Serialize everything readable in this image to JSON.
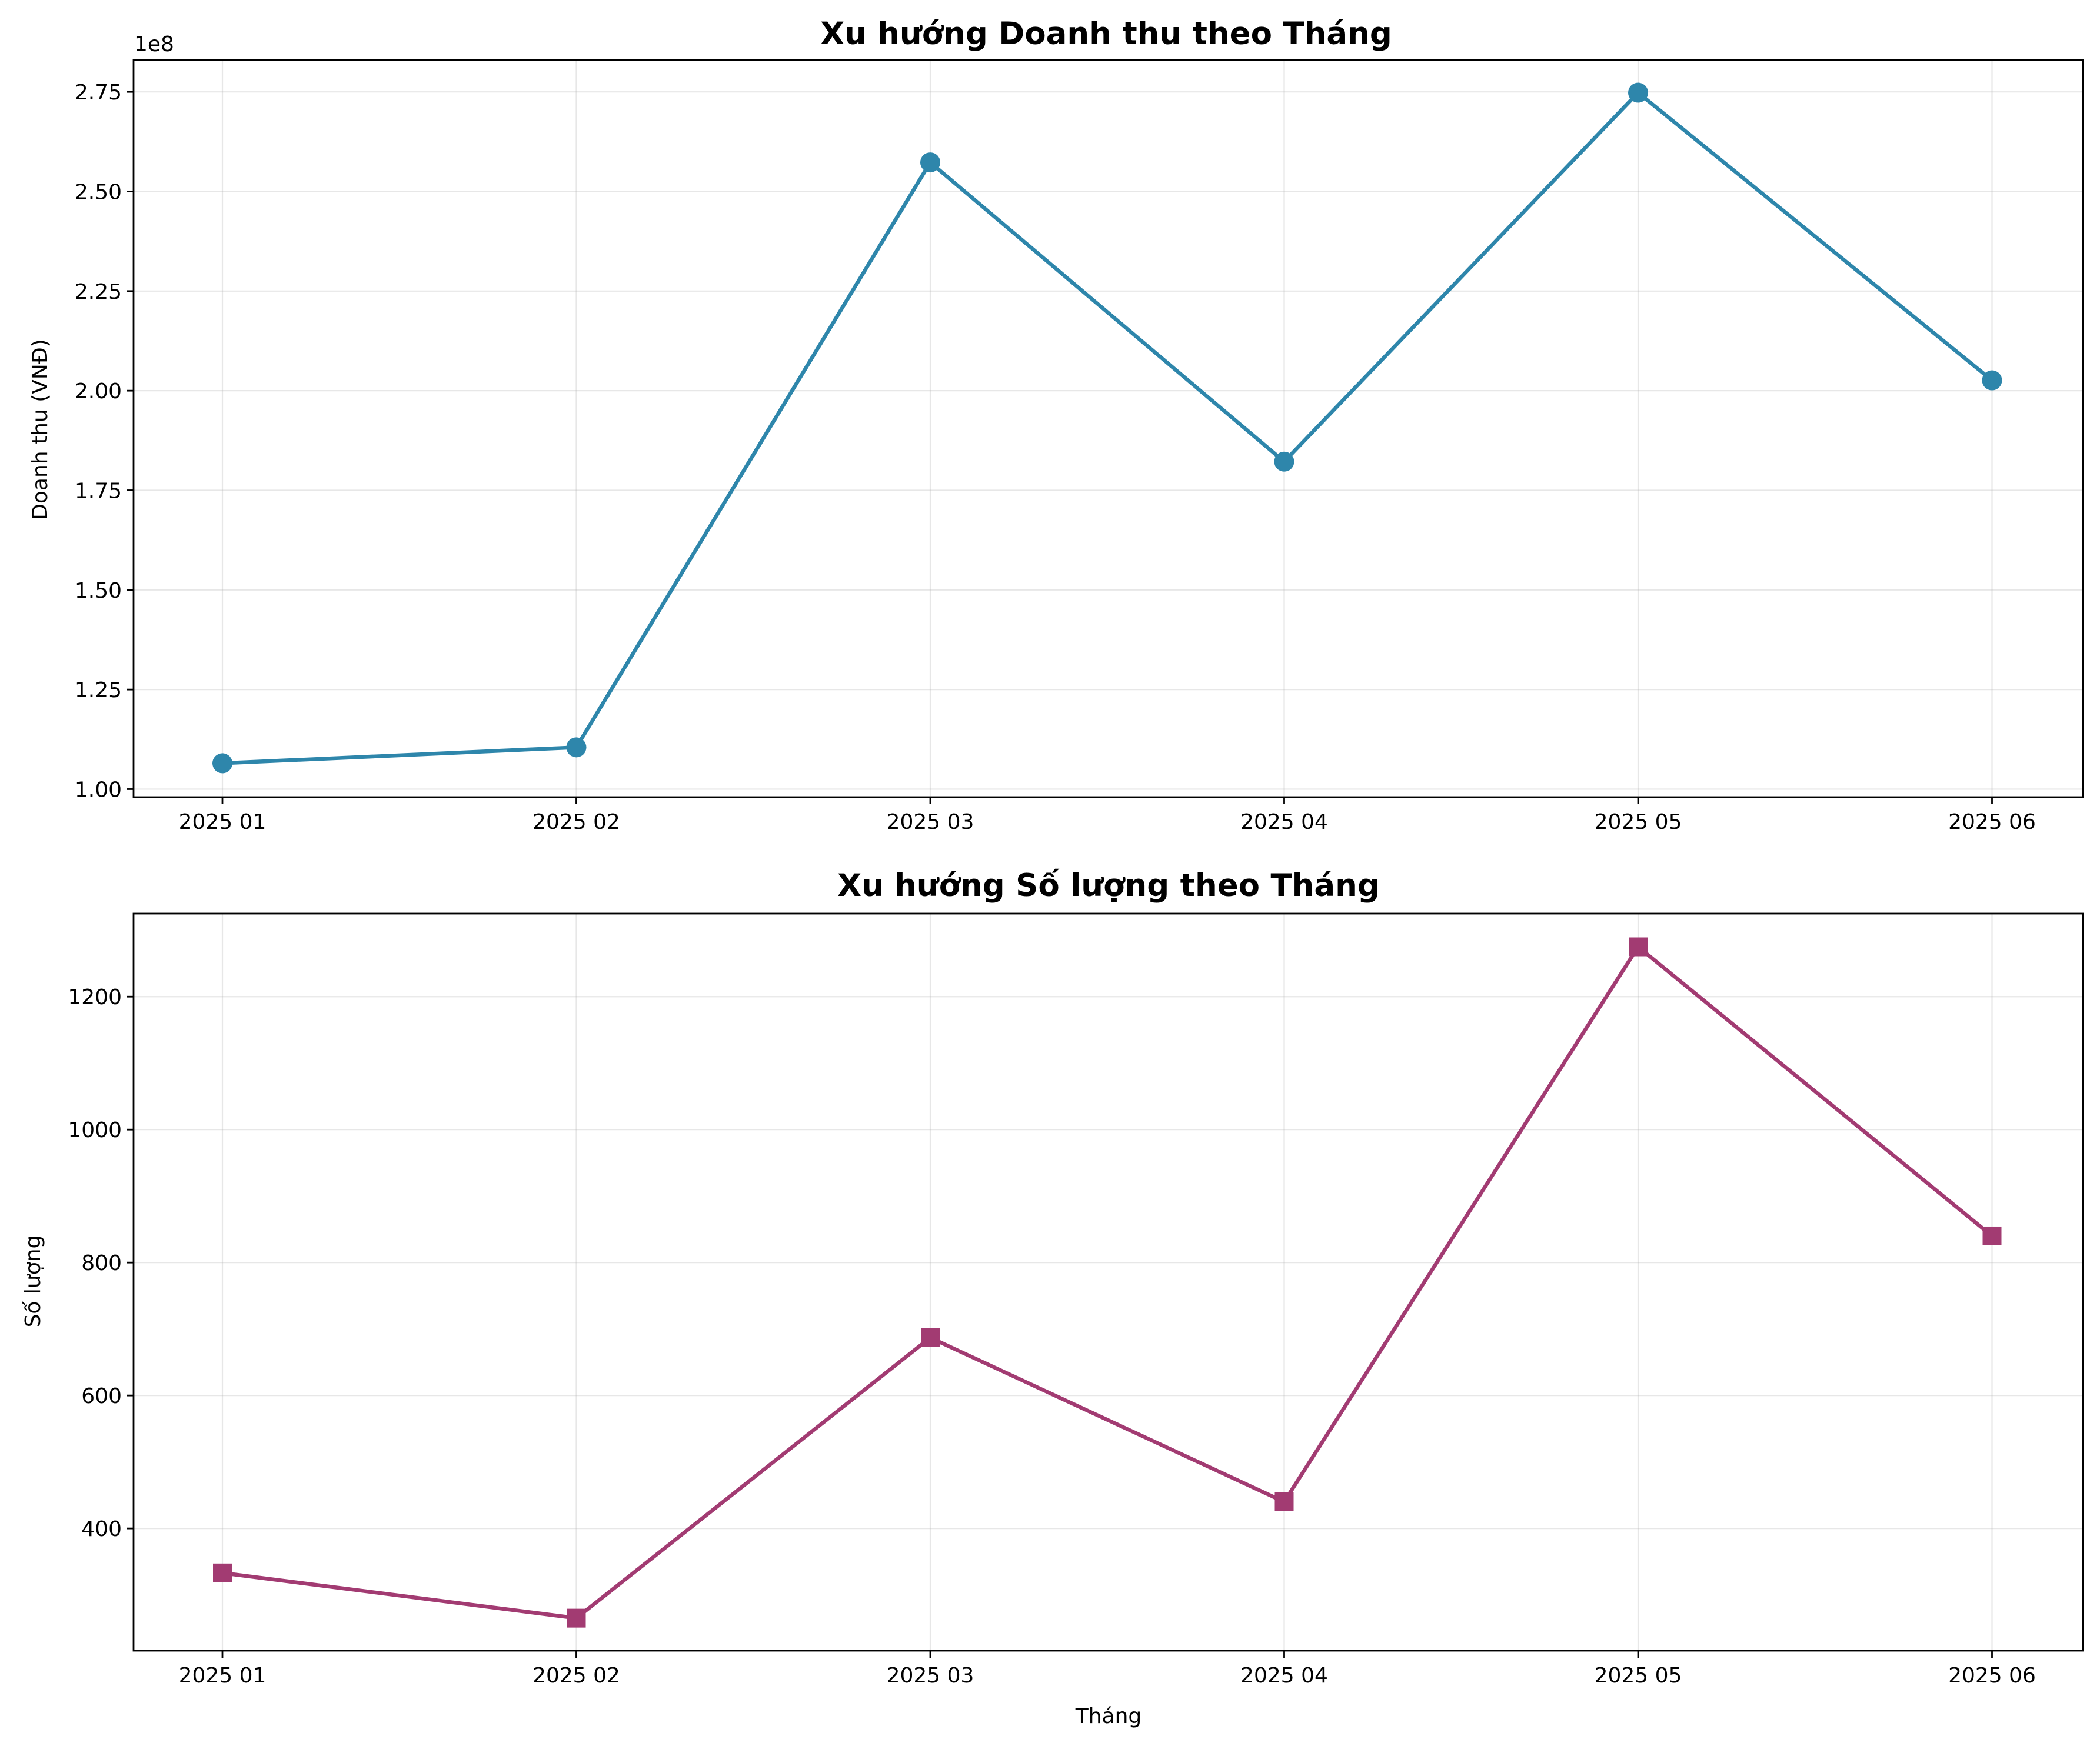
{
  "chart_data": [
    {
      "type": "line",
      "title": "Xu hướng Doanh thu theo Tháng",
      "xlabel": "",
      "ylabel": "Doanh thu (VNĐ)",
      "offset_label": "1e8",
      "categories": [
        "2025 01",
        "2025 02",
        "2025 03",
        "2025 04",
        "2025 05",
        "2025 06"
      ],
      "series": [
        {
          "values": [
            1.065,
            1.105,
            2.573,
            1.822,
            2.748,
            2.026
          ],
          "color": "#2e86ab",
          "marker": "circle"
        }
      ],
      "ylim": [
        0.98,
        2.83
      ],
      "yticks": [
        1.0,
        1.25,
        1.5,
        1.75,
        2.0,
        2.25,
        2.5,
        2.75
      ],
      "ytick_labels": [
        "1.00",
        "1.25",
        "1.50",
        "1.75",
        "2.00",
        "2.25",
        "2.50",
        "2.75"
      ],
      "grid": true
    },
    {
      "type": "line",
      "title": "Xu hướng Số lượng theo Tháng",
      "xlabel": "Tháng",
      "ylabel": "Số lượng",
      "categories": [
        "2025 01",
        "2025 02",
        "2025 03",
        "2025 04",
        "2025 05",
        "2025 06"
      ],
      "series": [
        {
          "values": [
            333,
            265,
            687,
            440,
            1275,
            840
          ],
          "color": "#a23b72",
          "marker": "square"
        }
      ],
      "ylim": [
        216,
        1325
      ],
      "yticks": [
        400,
        600,
        800,
        1000,
        1200
      ],
      "ytick_labels": [
        "400",
        "600",
        "800",
        "1000",
        "1200"
      ],
      "grid": true
    }
  ]
}
